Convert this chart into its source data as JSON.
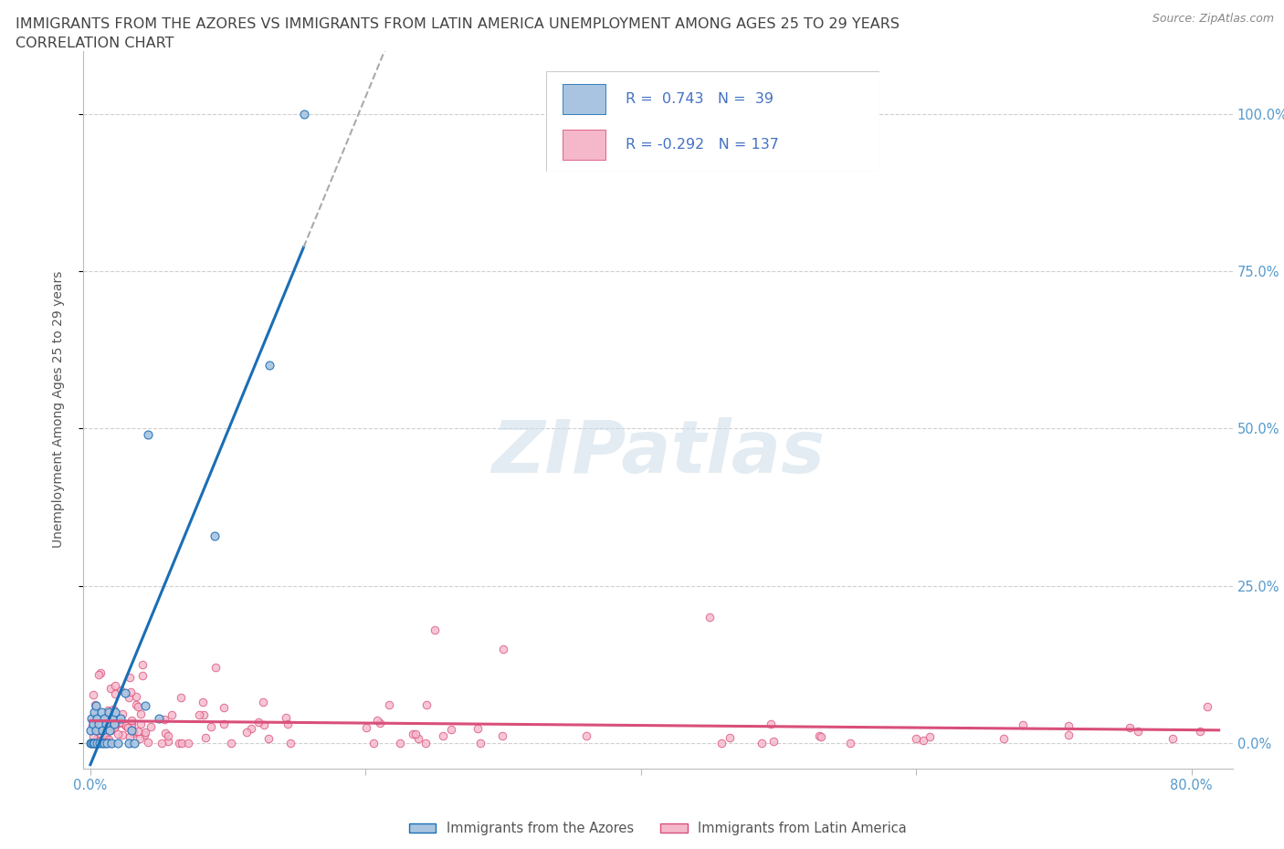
{
  "title_line1": "IMMIGRANTS FROM THE AZORES VS IMMIGRANTS FROM LATIN AMERICA UNEMPLOYMENT AMONG AGES 25 TO 29 YEARS",
  "title_line2": "CORRELATION CHART",
  "source": "Source: ZipAtlas.com",
  "ylabel": "Unemployment Among Ages 25 to 29 years",
  "xlim": [
    -0.005,
    0.83
  ],
  "ylim": [
    -0.04,
    1.1
  ],
  "ytick_vals": [
    0.0,
    0.25,
    0.5,
    0.75,
    1.0
  ],
  "ytick_labels_right": [
    "0.0%",
    "25.0%",
    "50.0%",
    "75.0%",
    "100.0%"
  ],
  "xtick_show": [
    0.0,
    0.8
  ],
  "xtick_labels_show": [
    "0.0%",
    "80.0%"
  ],
  "azores_color": "#a8c4e0",
  "azores_line_color": "#1a6eb5",
  "latin_color": "#f5b8cb",
  "latin_line_color": "#d94f7a",
  "legend_azores_label": "Immigrants from the Azores",
  "legend_latin_label": "Immigrants from Latin America",
  "R_azores": 0.743,
  "N_azores": 39,
  "R_latin": -0.292,
  "N_latin": 137,
  "watermark": "ZIPatlas",
  "background_color": "#ffffff",
  "grid_color": "#d0d0d0",
  "title_color": "#444444",
  "axis_label_color": "#555555",
  "tick_color": "#5599cc",
  "legend_text_color": "#4472c4"
}
